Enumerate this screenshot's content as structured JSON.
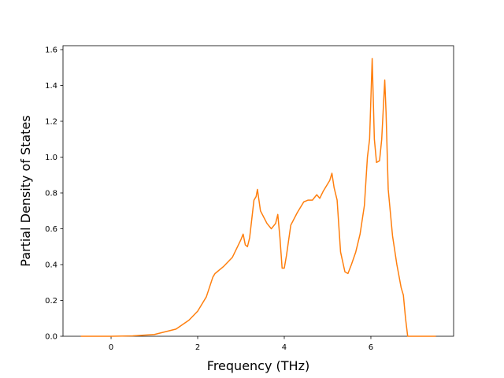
{
  "chart_data": {
    "type": "line",
    "x_label": "Frequency (THz)",
    "y_label": "Partial Density of States",
    "x": [
      -0.7,
      0,
      0.5,
      1.0,
      1.5,
      1.8,
      2.0,
      2.2,
      2.35,
      2.4,
      2.6,
      2.8,
      3.0,
      3.05,
      3.1,
      3.15,
      3.2,
      3.3,
      3.35,
      3.38,
      3.45,
      3.6,
      3.7,
      3.8,
      3.85,
      3.9,
      3.95,
      4.0,
      4.05,
      4.15,
      4.3,
      4.45,
      4.55,
      4.65,
      4.75,
      4.82,
      4.9,
      5.05,
      5.1,
      5.15,
      5.22,
      5.3,
      5.4,
      5.47,
      5.55,
      5.65,
      5.75,
      5.85,
      5.92,
      5.97,
      6.03,
      6.08,
      6.13,
      6.2,
      6.25,
      6.32,
      6.35,
      6.4,
      6.5,
      6.6,
      6.7,
      6.75,
      6.8,
      6.85,
      7.0,
      7.5
    ],
    "series": [
      {
        "color": "#ff7f0e",
        "values": [
          0,
          0,
          0.002,
          0.01,
          0.04,
          0.09,
          0.14,
          0.22,
          0.33,
          0.35,
          0.39,
          0.44,
          0.54,
          0.57,
          0.51,
          0.5,
          0.55,
          0.76,
          0.78,
          0.82,
          0.7,
          0.63,
          0.6,
          0.63,
          0.68,
          0.55,
          0.38,
          0.38,
          0.45,
          0.62,
          0.69,
          0.75,
          0.76,
          0.76,
          0.79,
          0.77,
          0.81,
          0.87,
          0.91,
          0.83,
          0.76,
          0.47,
          0.36,
          0.35,
          0.4,
          0.47,
          0.57,
          0.73,
          1.0,
          1.1,
          1.55,
          1.1,
          0.97,
          0.98,
          1.1,
          1.43,
          1.25,
          0.82,
          0.56,
          0.4,
          0.27,
          0.23,
          0.1,
          0,
          0,
          0
        ]
      }
    ],
    "xlim": [
      -1.11,
      7.91
    ],
    "ylim": [
      0,
      1.622
    ],
    "xticks": [
      0,
      2,
      4,
      6
    ],
    "yticks": [
      {
        "value": 0,
        "label": "0.0"
      },
      0.2,
      0.4,
      0.6,
      0.8,
      {
        "value": 1,
        "label": "1.0"
      },
      1.2,
      1.4,
      1.6
    ],
    "grid": false
  }
}
